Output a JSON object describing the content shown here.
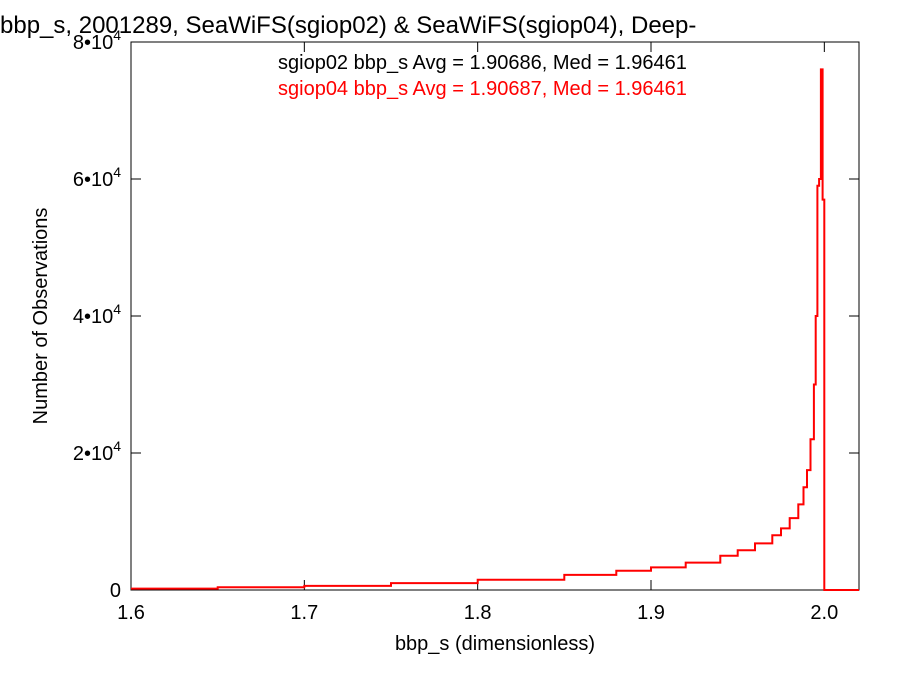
{
  "chart_data": {
    "type": "line",
    "title": "bbp_s, 2001289, SeaWiFS(sgiop02) & SeaWiFS(sgiop04), Deep-",
    "xlabel": "bbp_s (dimensionless)",
    "ylabel": "Number of Observations",
    "xlim": [
      1.6,
      2.02
    ],
    "ylim": [
      0,
      80000
    ],
    "xticks": [
      {
        "value": 1.6,
        "label": "1.6"
      },
      {
        "value": 1.7,
        "label": "1.7"
      },
      {
        "value": 1.8,
        "label": "1.8"
      },
      {
        "value": 1.9,
        "label": "1.9"
      },
      {
        "value": 2.0,
        "label": "2.0"
      }
    ],
    "yticks": [
      {
        "value": 0,
        "base": "0",
        "exp": ""
      },
      {
        "value": 20000,
        "base": "2•10",
        "exp": "4"
      },
      {
        "value": 40000,
        "base": "4•10",
        "exp": "4"
      },
      {
        "value": 60000,
        "base": "6•10",
        "exp": "4"
      },
      {
        "value": 80000,
        "base": "8•10",
        "exp": "4"
      }
    ],
    "grid": false,
    "annotations": [
      {
        "text": "sgiop02 bbp_s Avg = 1.90686, Med = 1.96461",
        "color": "#000000"
      },
      {
        "text": "sgiop04 bbp_s Avg = 1.90687, Med = 1.96461",
        "color": "#ff0000"
      }
    ],
    "series": [
      {
        "color": "#ff0000",
        "x": [
          1.6,
          1.65,
          1.7,
          1.75,
          1.8,
          1.85,
          1.88,
          1.9,
          1.92,
          1.94,
          1.95,
          1.96,
          1.97,
          1.975,
          1.98,
          1.985,
          1.988,
          1.99,
          1.992,
          1.994,
          1.995,
          1.996,
          1.997,
          1.998,
          1.999,
          2.0,
          2.001,
          2.002,
          2.01,
          2.02
        ],
        "values": [
          200,
          400,
          600,
          1000,
          1500,
          2200,
          2800,
          3300,
          4000,
          5000,
          5800,
          6800,
          8000,
          9000,
          10500,
          12500,
          15000,
          17500,
          22000,
          30000,
          40000,
          59000,
          60000,
          76000,
          57000,
          0,
          0,
          0,
          0,
          0
        ]
      }
    ]
  }
}
